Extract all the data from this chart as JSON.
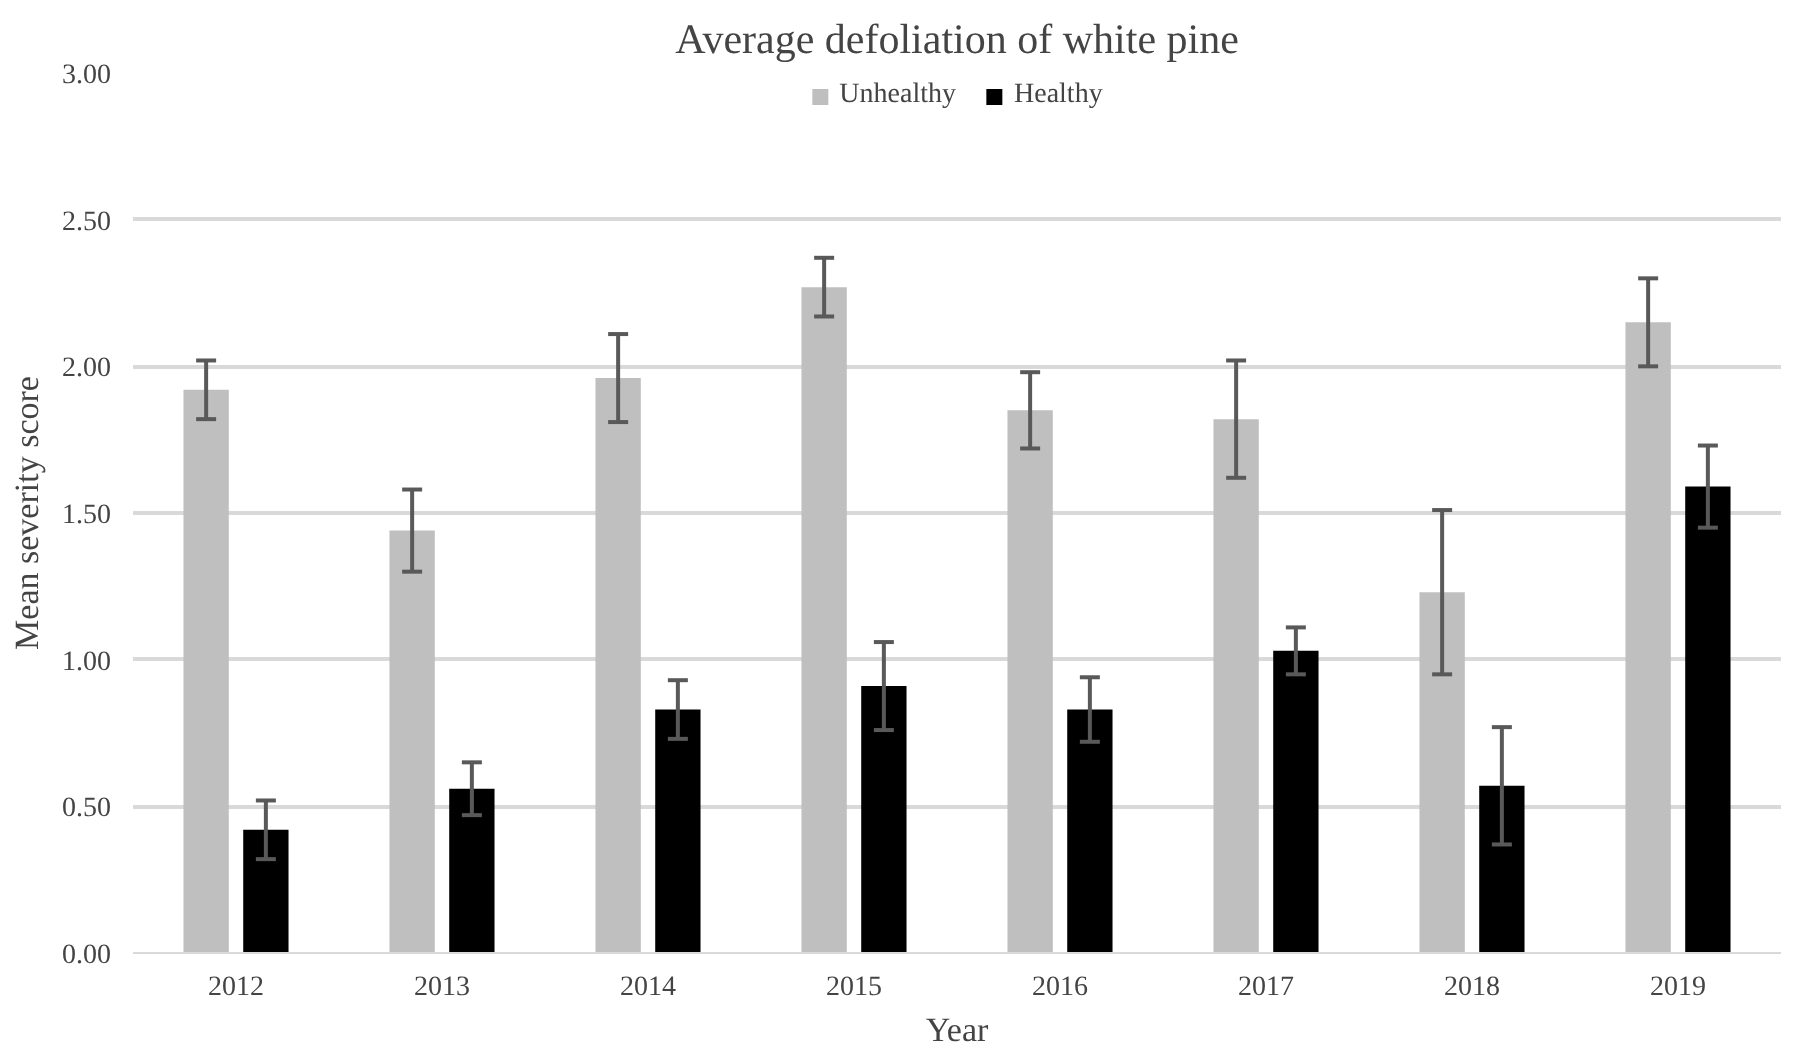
{
  "chart_data": {
    "type": "bar",
    "title": "Average defoliation of white pine",
    "xlabel": "Year",
    "ylabel": "Mean severity score",
    "categories": [
      "2012",
      "2013",
      "2014",
      "2015",
      "2016",
      "2017",
      "2018",
      "2019"
    ],
    "series": [
      {
        "name": "Unhealthy",
        "color": "#bfbfbf",
        "values": [
          1.92,
          1.44,
          1.96,
          2.27,
          1.85,
          1.82,
          1.23,
          2.15
        ],
        "errors": [
          0.1,
          0.14,
          0.15,
          0.1,
          0.13,
          0.2,
          0.28,
          0.15
        ]
      },
      {
        "name": "Healthy",
        "color": "#000000",
        "values": [
          0.42,
          0.56,
          0.83,
          0.91,
          0.83,
          1.03,
          0.57,
          1.59
        ],
        "errors": [
          0.1,
          0.09,
          0.1,
          0.15,
          0.11,
          0.08,
          0.2,
          0.14
        ]
      }
    ],
    "ylim": [
      0,
      3
    ],
    "yticks": [
      {
        "value": 0,
        "label": "0.00"
      },
      {
        "value": 0.5,
        "label": "0.50"
      },
      {
        "value": 1,
        "label": "1.00"
      },
      {
        "value": 1.5,
        "label": "1.50"
      },
      {
        "value": 2,
        "label": "2.00"
      },
      {
        "value": 2.5,
        "label": "2.50"
      },
      {
        "value": 3,
        "label": "3.00"
      }
    ],
    "grid": "y",
    "legend": "top"
  }
}
